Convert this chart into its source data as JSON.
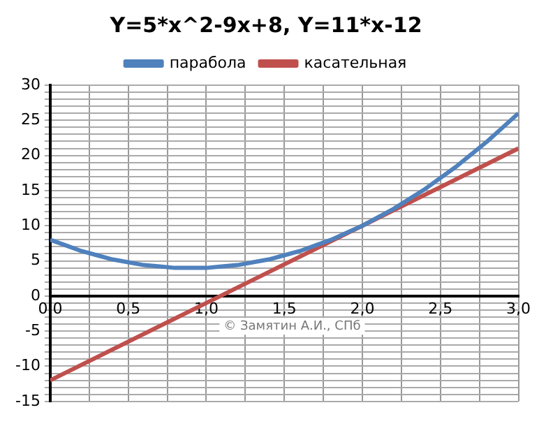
{
  "chart_data": {
    "type": "line",
    "title": "Y=5*x^2-9x+8, Y=11*x-12",
    "series": [
      {
        "name": "парабола",
        "color": "#4f81bd",
        "x": [
          0,
          0.1,
          0.2,
          0.3,
          0.4,
          0.5,
          0.6,
          0.7,
          0.8,
          0.9,
          1,
          1.1,
          1.2,
          1.3,
          1.4,
          1.5,
          1.6,
          1.7,
          1.8,
          1.9,
          2,
          2.1,
          2.2,
          2.3,
          2.4,
          2.5,
          2.6,
          2.7,
          2.8,
          2.9,
          3
        ],
        "values": [
          8,
          7.2,
          6.4,
          5.8,
          5.2,
          4.8,
          4.4,
          4.2,
          4,
          4,
          4,
          4.2,
          4.4,
          4.8,
          5.2,
          5.8,
          6.4,
          7.2,
          8,
          9,
          10,
          11.2,
          12.4,
          13.8,
          15.2,
          16.8,
          18.4,
          20.2,
          22,
          24,
          26
        ]
      },
      {
        "name": "касательная",
        "color": "#c0504d",
        "x": [
          0,
          1,
          2,
          3
        ],
        "values": [
          -12,
          -1,
          10,
          21
        ]
      }
    ],
    "xlim": [
      0,
      3
    ],
    "xticks": [
      {
        "value": 0,
        "label": "0,0"
      },
      {
        "value": 0.25,
        "label": null
      },
      {
        "value": 0.5,
        "label": "0,5"
      },
      {
        "value": 0.75,
        "label": null
      },
      {
        "value": 1,
        "label": "1,0"
      },
      {
        "value": 1.25,
        "label": null
      },
      {
        "value": 1.5,
        "label": "1,5"
      },
      {
        "value": 1.75,
        "label": null
      },
      {
        "value": 2,
        "label": "2,0"
      },
      {
        "value": 2.25,
        "label": null
      },
      {
        "value": 2.5,
        "label": "2,5"
      },
      {
        "value": 2.75,
        "label": null
      },
      {
        "value": 3,
        "label": "3,0"
      }
    ],
    "ylim": [
      -15,
      30
    ],
    "yticks": [
      -15,
      {
        "value": -14,
        "label": null
      },
      {
        "value": -13,
        "label": null
      },
      {
        "value": -12,
        "label": null
      },
      {
        "value": -11,
        "label": null
      },
      -10,
      {
        "value": -9,
        "label": null
      },
      {
        "value": -8,
        "label": null
      },
      {
        "value": -7,
        "label": null
      },
      {
        "value": -6,
        "label": null
      },
      -5,
      {
        "value": -4,
        "label": null
      },
      {
        "value": -3,
        "label": null
      },
      {
        "value": -2,
        "label": null
      },
      {
        "value": -1,
        "label": null
      },
      0,
      {
        "value": 1,
        "label": null
      },
      {
        "value": 2,
        "label": null
      },
      {
        "value": 3,
        "label": null
      },
      {
        "value": 4,
        "label": null
      },
      5,
      {
        "value": 6,
        "label": null
      },
      {
        "value": 7,
        "label": null
      },
      {
        "value": 8,
        "label": null
      },
      {
        "value": 9,
        "label": null
      },
      10,
      {
        "value": 11,
        "label": null
      },
      {
        "value": 12,
        "label": null
      },
      {
        "value": 13,
        "label": null
      },
      {
        "value": 14,
        "label": null
      },
      15,
      {
        "value": 16,
        "label": null
      },
      {
        "value": 17,
        "label": null
      },
      {
        "value": 18,
        "label": null
      },
      {
        "value": 19,
        "label": null
      },
      20,
      {
        "value": 21,
        "label": null
      },
      {
        "value": 22,
        "label": null
      },
      {
        "value": 23,
        "label": null
      },
      {
        "value": 24,
        "label": null
      },
      25,
      {
        "value": 26,
        "label": null
      },
      {
        "value": 27,
        "label": null
      },
      {
        "value": 28,
        "label": null
      },
      {
        "value": 29,
        "label": null
      },
      30
    ],
    "grid": true,
    "legend": "top",
    "marker": "none",
    "line_style": "solid",
    "annotations": [
      "© Замятин А.И., СПб"
    ]
  }
}
